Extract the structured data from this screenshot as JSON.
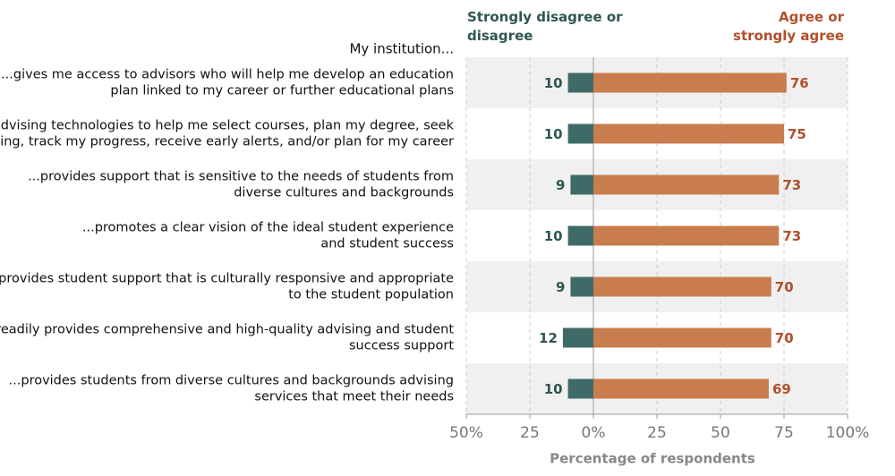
{
  "chart_data": {
    "type": "diverging-bar",
    "row_header": "My institution...",
    "categories": [
      [
        "...gives me access to advisors who will help me develop an education",
        "plan linked to my career or further educational plans"
      ],
      [
        "...uses advising technologies to help me select courses, plan my degree, seek",
        "coaching, track my progress, receive early alerts, and/or plan for my career"
      ],
      [
        "...provides support that is sensitive to the needs of students from",
        "diverse cultures and backgrounds"
      ],
      [
        "...promotes a clear vision of the ideal student experience",
        "and student success"
      ],
      [
        "...provides student support that is culturally responsive and appropriate",
        "to the student population"
      ],
      [
        "...readily provides comprehensive and high-quality advising and student",
        "success support"
      ],
      [
        "...provides students from diverse cultures and backgrounds advising",
        "services that meet their needs"
      ]
    ],
    "series": [
      {
        "name": "Strongly disagree or disagree",
        "color": "#3e6b68",
        "label_color": "#2f5652",
        "values": [
          10,
          10,
          9,
          10,
          9,
          12,
          10
        ]
      },
      {
        "name": "Agree or strongly agree",
        "color": "#c97d4e",
        "label_color": "#b0502b",
        "values": [
          76,
          75,
          73,
          73,
          70,
          70,
          69
        ]
      }
    ],
    "xlim": [
      -50,
      100
    ],
    "xticks": [
      {
        "value": -50,
        "label": "50%"
      },
      {
        "value": -25,
        "label": "25"
      },
      {
        "value": 0,
        "label": "0%"
      },
      25,
      50,
      75,
      {
        "value": 100,
        "label": "100%"
      }
    ],
    "xlabel": "Percentage of respondents",
    "grid": true
  }
}
